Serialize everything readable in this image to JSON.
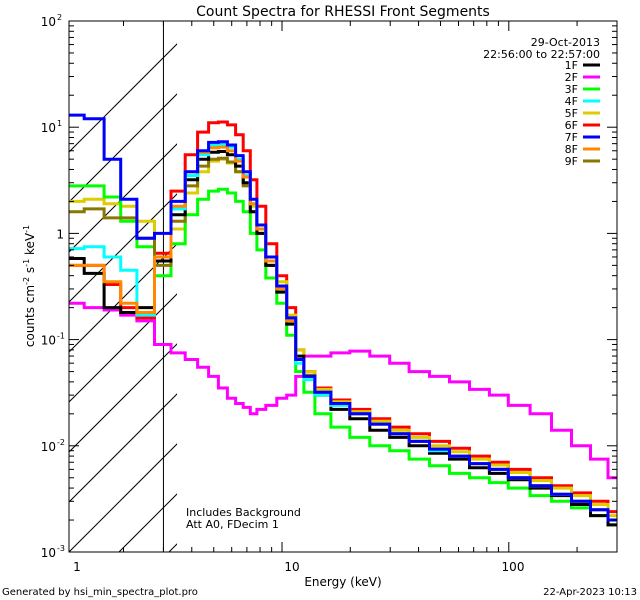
{
  "chart_data": {
    "type": "line",
    "title": "Count Spectra for RHESSI Front Segments",
    "xlabel": "Energy (keV)",
    "ylabel": "counts cm^-2 s^-1 keV^-1",
    "xscale": "log",
    "yscale": "log",
    "xlim": [
      1.15,
      300
    ],
    "ylim": [
      0.001,
      100
    ],
    "x_ticks": [
      {
        "value": 1,
        "label": "1"
      },
      {
        "value": 10,
        "label": "10"
      },
      {
        "value": 100,
        "label": "100"
      }
    ],
    "y_ticks": [
      {
        "value": 0.001,
        "label": "10",
        "exp": "-3"
      },
      {
        "value": 0.01,
        "label": "10",
        "exp": "-2"
      },
      {
        "value": 0.1,
        "label": "10",
        "exp": "-1"
      },
      {
        "value": 1,
        "label": "1",
        "exp": ""
      },
      {
        "value": 10,
        "label": "10",
        "exp": "1"
      },
      {
        "value": 100,
        "label": "10",
        "exp": "2"
      }
    ],
    "hatched_region_max_energy": 3.0,
    "date": "29-Oct-2013",
    "time_range": "22:56:00 to 22:57:00",
    "annotations": [
      "Includes Background",
      "Att A0, FDecim 1"
    ],
    "footer_left": "Generated by hsi_min_spectra_plot.pro",
    "footer_right": "22-Apr-2023 10:13",
    "energies": [
      1.2,
      1.5,
      1.8,
      2.1,
      2.5,
      3.0,
      3.5,
      4.0,
      4.5,
      5.0,
      5.5,
      6.0,
      6.5,
      7.0,
      7.5,
      8.0,
      9.0,
      10.0,
      11.0,
      12.0,
      13.0,
      15.0,
      18.0,
      22.0,
      27.0,
      33.0,
      40.0,
      50.0,
      60.0,
      75.0,
      90.0,
      110.0,
      140.0,
      170.0,
      210.0,
      250.0,
      300.0
    ],
    "series": [
      {
        "name": "1F",
        "color": "#000000",
        "values": [
          0.58,
          0.42,
          0.2,
          0.18,
          0.2,
          0.55,
          1.5,
          3.2,
          5.0,
          5.8,
          5.9,
          5.5,
          4.3,
          3.0,
          1.6,
          1.0,
          0.5,
          0.28,
          0.14,
          0.07,
          0.045,
          0.03,
          0.022,
          0.018,
          0.014,
          0.012,
          0.01,
          0.0085,
          0.0075,
          0.0062,
          0.0055,
          0.0048,
          0.004,
          0.0034,
          0.0028,
          0.0022,
          0.0018
        ]
      },
      {
        "name": "2F",
        "color": "#ff00ff",
        "values": [
          0.22,
          0.2,
          0.19,
          0.17,
          0.15,
          0.09,
          0.075,
          0.065,
          0.055,
          0.045,
          0.035,
          0.028,
          0.025,
          0.023,
          0.02,
          0.022,
          0.024,
          0.028,
          0.03,
          0.045,
          0.07,
          0.07,
          0.075,
          0.078,
          0.07,
          0.06,
          0.05,
          0.045,
          0.04,
          0.034,
          0.03,
          0.024,
          0.02,
          0.014,
          0.01,
          0.0075,
          0.005
        ]
      },
      {
        "name": "3F",
        "color": "#00ff00",
        "values": [
          2.8,
          2.8,
          2.2,
          1.3,
          0.75,
          0.4,
          0.8,
          1.5,
          2.1,
          2.5,
          2.6,
          2.4,
          2.0,
          1.6,
          1.0,
          0.7,
          0.38,
          0.22,
          0.11,
          0.05,
          0.032,
          0.02,
          0.015,
          0.012,
          0.01,
          0.009,
          0.0075,
          0.0065,
          0.0055,
          0.005,
          0.0045,
          0.004,
          0.0034,
          0.003,
          0.0026,
          0.0022,
          0.0018
        ]
      },
      {
        "name": "4F",
        "color": "#00ffff",
        "values": [
          0.72,
          0.75,
          0.6,
          0.45,
          0.17,
          0.6,
          1.7,
          3.5,
          5.5,
          6.8,
          6.9,
          6.5,
          5.0,
          3.5,
          1.9,
          1.1,
          0.55,
          0.3,
          0.15,
          0.06,
          0.042,
          0.03,
          0.024,
          0.02,
          0.016,
          0.013,
          0.011,
          0.009,
          0.008,
          0.0068,
          0.006,
          0.005,
          0.0042,
          0.0035,
          0.003,
          0.0025,
          0.002
        ]
      },
      {
        "name": "5F",
        "color": "#ddcc00",
        "values": [
          2.0,
          2.1,
          1.9,
          1.8,
          1.3,
          0.6,
          1.1,
          2.4,
          3.8,
          4.8,
          5.0,
          4.6,
          3.8,
          2.9,
          1.8,
          1.2,
          0.6,
          0.35,
          0.17,
          0.08,
          0.05,
          0.034,
          0.026,
          0.021,
          0.017,
          0.014,
          0.012,
          0.01,
          0.0088,
          0.0075,
          0.0066,
          0.0056,
          0.0047,
          0.004,
          0.0034,
          0.0028,
          0.0022
        ]
      },
      {
        "name": "6F",
        "color": "#ff0000",
        "values": [
          0.5,
          0.5,
          0.33,
          0.2,
          0.16,
          0.65,
          2.5,
          5.5,
          9.0,
          11.0,
          11.2,
          10.5,
          8.5,
          6.0,
          3.2,
          1.8,
          0.8,
          0.4,
          0.2,
          0.08,
          0.05,
          0.035,
          0.027,
          0.022,
          0.018,
          0.015,
          0.013,
          0.011,
          0.0095,
          0.008,
          0.007,
          0.006,
          0.005,
          0.0042,
          0.0036,
          0.003,
          0.0024
        ]
      },
      {
        "name": "7F",
        "color": "#0000ff",
        "values": [
          13.0,
          12.0,
          5.0,
          2.1,
          0.9,
          1.0,
          2.0,
          3.8,
          6.0,
          7.2,
          7.3,
          6.8,
          5.4,
          3.8,
          2.1,
          1.2,
          0.6,
          0.32,
          0.16,
          0.065,
          0.045,
          0.032,
          0.025,
          0.02,
          0.016,
          0.013,
          0.011,
          0.0093,
          0.008,
          0.0068,
          0.006,
          0.005,
          0.0042,
          0.0035,
          0.003,
          0.0025,
          0.002
        ]
      },
      {
        "name": "8F",
        "color": "#ff8800",
        "values": [
          0.5,
          0.5,
          0.35,
          0.22,
          0.18,
          0.6,
          1.8,
          3.8,
          5.8,
          6.4,
          6.5,
          6.0,
          4.8,
          3.4,
          1.9,
          1.1,
          0.55,
          0.3,
          0.15,
          0.065,
          0.045,
          0.032,
          0.025,
          0.02,
          0.016,
          0.013,
          0.011,
          0.0093,
          0.008,
          0.0068,
          0.006,
          0.005,
          0.0042,
          0.0035,
          0.003,
          0.0025,
          0.002
        ]
      },
      {
        "name": "9F",
        "color": "#887700",
        "values": [
          1.6,
          1.7,
          1.4,
          1.4,
          0.9,
          0.5,
          1.3,
          2.8,
          4.3,
          5.0,
          5.1,
          4.7,
          3.8,
          2.8,
          1.6,
          1.0,
          0.5,
          0.3,
          0.15,
          0.065,
          0.046,
          0.032,
          0.025,
          0.02,
          0.016,
          0.013,
          0.011,
          0.0093,
          0.008,
          0.0068,
          0.006,
          0.005,
          0.0042,
          0.0035,
          0.003,
          0.0025,
          0.002
        ]
      }
    ]
  }
}
